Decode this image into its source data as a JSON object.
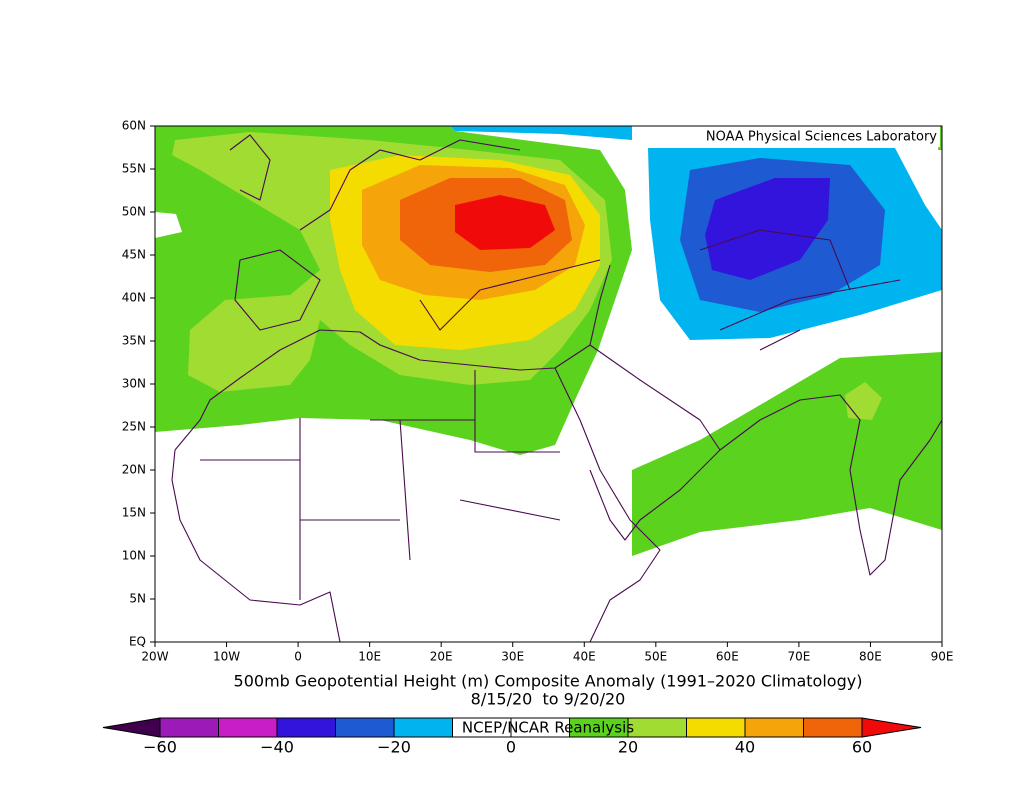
{
  "map": {
    "credit": "NOAA Physical Sciences Laboratory",
    "lat_labels": [
      "60N",
      "55N",
      "50N",
      "45N",
      "40N",
      "35N",
      "30N",
      "25N",
      "20N",
      "15N",
      "10N",
      "5N",
      "EQ"
    ],
    "lon_labels": [
      "20W",
      "10W",
      "0",
      "10E",
      "20E",
      "30E",
      "40E",
      "50E",
      "60E",
      "70E",
      "80E",
      "90E"
    ],
    "title": "500mb Geopotential Height (m) Composite Anomaly (1991–2020 Climatology)",
    "dates": "8/15/20  to 9/20/20",
    "source": "NCEP/NCAR Reanalysis"
  },
  "colorbar": {
    "labels": [
      "−60",
      "−40",
      "−20",
      "0",
      "20",
      "40",
      "60"
    ],
    "colors": [
      "#40004e",
      "#9b1ab8",
      "#c81ec8",
      "#3214dc",
      "#1e5ad2",
      "#00b4f0",
      "#ffffff",
      "#ffffff",
      "#5ad21e",
      "#a0dc32",
      "#f5dc00",
      "#f5a50a",
      "#f0640a",
      "#f00a0a"
    ]
  }
}
